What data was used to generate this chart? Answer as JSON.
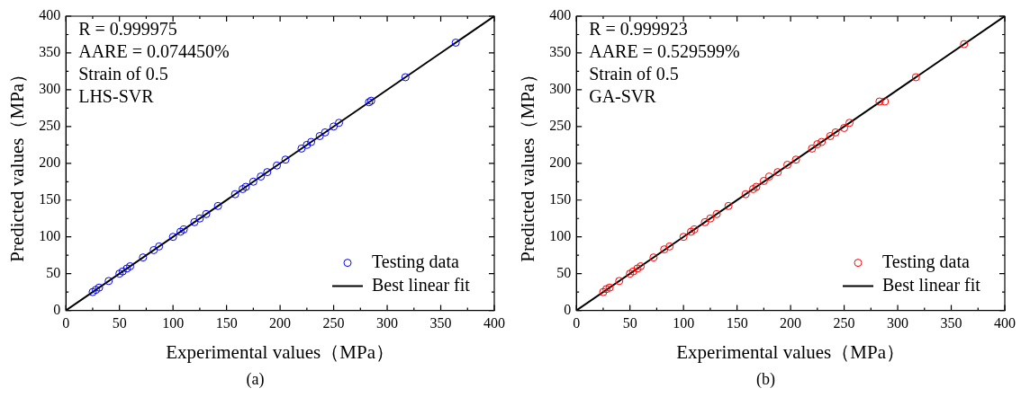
{
  "chart_data": [
    {
      "type": "scatter",
      "title": "(a)",
      "xlabel": "Experimental values（MPa）",
      "ylabel": "Predicted values（MPa）",
      "xlim": [
        0,
        400
      ],
      "ylim": [
        0,
        400
      ],
      "xticks": [
        0,
        50,
        100,
        150,
        200,
        250,
        300,
        350,
        400
      ],
      "yticks": [
        0,
        50,
        100,
        150,
        200,
        250,
        300,
        350,
        400
      ],
      "grid": false,
      "legend": "bottom right",
      "marker": "circle",
      "annotations": [
        "R = 0.999975",
        "AARE = 0.074450%",
        "Strain of 0.5",
        "LHS-SVR"
      ],
      "series": [
        {
          "name": "Testing data",
          "color": "#0000ff",
          "x": [
            25,
            28,
            31,
            40,
            50,
            53,
            57,
            60,
            72,
            82,
            87,
            100,
            107,
            110,
            120,
            125,
            131,
            142,
            158,
            165,
            168,
            175,
            182,
            188,
            197,
            205,
            220,
            225,
            229,
            237,
            242,
            250,
            255,
            283,
            285,
            317,
            364
          ],
          "values": [
            25,
            28,
            31,
            40,
            50,
            53,
            57,
            60,
            72,
            82,
            87,
            100,
            107,
            110,
            120,
            125,
            131,
            142,
            158,
            165,
            168,
            175,
            182,
            188,
            197,
            205,
            220,
            225,
            229,
            237,
            242,
            250,
            255,
            283,
            285,
            317,
            364
          ]
        },
        {
          "name": "Best linear fit",
          "color": "#000000",
          "type": "line",
          "marker": "none",
          "x": [
            0,
            400
          ],
          "values": [
            0,
            400
          ]
        }
      ]
    },
    {
      "type": "scatter",
      "title": "(b)",
      "xlabel": "Experimental values（MPa）",
      "ylabel": "Predicted values（MPa）",
      "xlim": [
        0,
        400
      ],
      "ylim": [
        0,
        400
      ],
      "xticks": [
        0,
        50,
        100,
        150,
        200,
        250,
        300,
        350,
        400
      ],
      "yticks": [
        0,
        50,
        100,
        150,
        200,
        250,
        300,
        350,
        400
      ],
      "grid": false,
      "legend": "bottom right",
      "marker": "circle",
      "annotations": [
        "R = 0.999923",
        "AARE = 0.529599%",
        "Strain of 0.5",
        "GA-SVR"
      ],
      "series": [
        {
          "name": "Testing data",
          "color": "#ff0000",
          "x": [
            25,
            28,
            31,
            40,
            50,
            53,
            57,
            60,
            72,
            82,
            87,
            100,
            107,
            110,
            120,
            125,
            131,
            142,
            158,
            165,
            168,
            175,
            180,
            188,
            197,
            205,
            220,
            225,
            229,
            237,
            242,
            250,
            255,
            283,
            288,
            317,
            362
          ],
          "values": [
            25,
            29,
            31,
            40,
            50,
            53,
            57,
            60,
            72,
            83,
            87,
            100,
            107,
            110,
            120,
            125,
            131,
            142,
            158,
            165,
            168,
            176,
            182,
            188,
            198,
            205,
            220,
            226,
            229,
            237,
            242,
            248,
            255,
            284,
            284,
            317,
            362
          ]
        },
        {
          "name": "Best linear fit",
          "color": "#000000",
          "type": "line",
          "marker": "none",
          "x": [
            0,
            400
          ],
          "values": [
            0,
            400
          ]
        }
      ]
    }
  ]
}
